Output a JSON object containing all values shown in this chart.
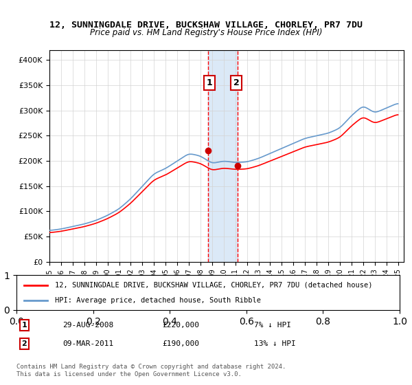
{
  "title": "12, SUNNINGDALE DRIVE, BUCKSHAW VILLAGE, CHORLEY, PR7 7DU",
  "subtitle": "Price paid vs. HM Land Registry's House Price Index (HPI)",
  "legend_line1": "12, SUNNINGDALE DRIVE, BUCKSHAW VILLAGE, CHORLEY, PR7 7DU (detached house)",
  "legend_line2": "HPI: Average price, detached house, South Ribble",
  "sale1_label": "1",
  "sale1_date": "29-AUG-2008",
  "sale1_price": "£220,000",
  "sale1_hpi": "7% ↓ HPI",
  "sale2_label": "2",
  "sale2_date": "09-MAR-2011",
  "sale2_price": "£190,000",
  "sale2_hpi": "13% ↓ HPI",
  "footer": "Contains HM Land Registry data © Crown copyright and database right 2024.\nThis data is licensed under the Open Government Licence v3.0.",
  "sale1_year": 2008.66,
  "sale2_year": 2011.18,
  "highlight_color": "#cce0f5",
  "sale_line_color": "#ff0000",
  "hpi_line_color": "#6699cc",
  "sale_dot_color": "#cc0000",
  "ylim_min": 0,
  "ylim_max": 420000,
  "xlim_min": 1995,
  "xlim_max": 2025.5
}
